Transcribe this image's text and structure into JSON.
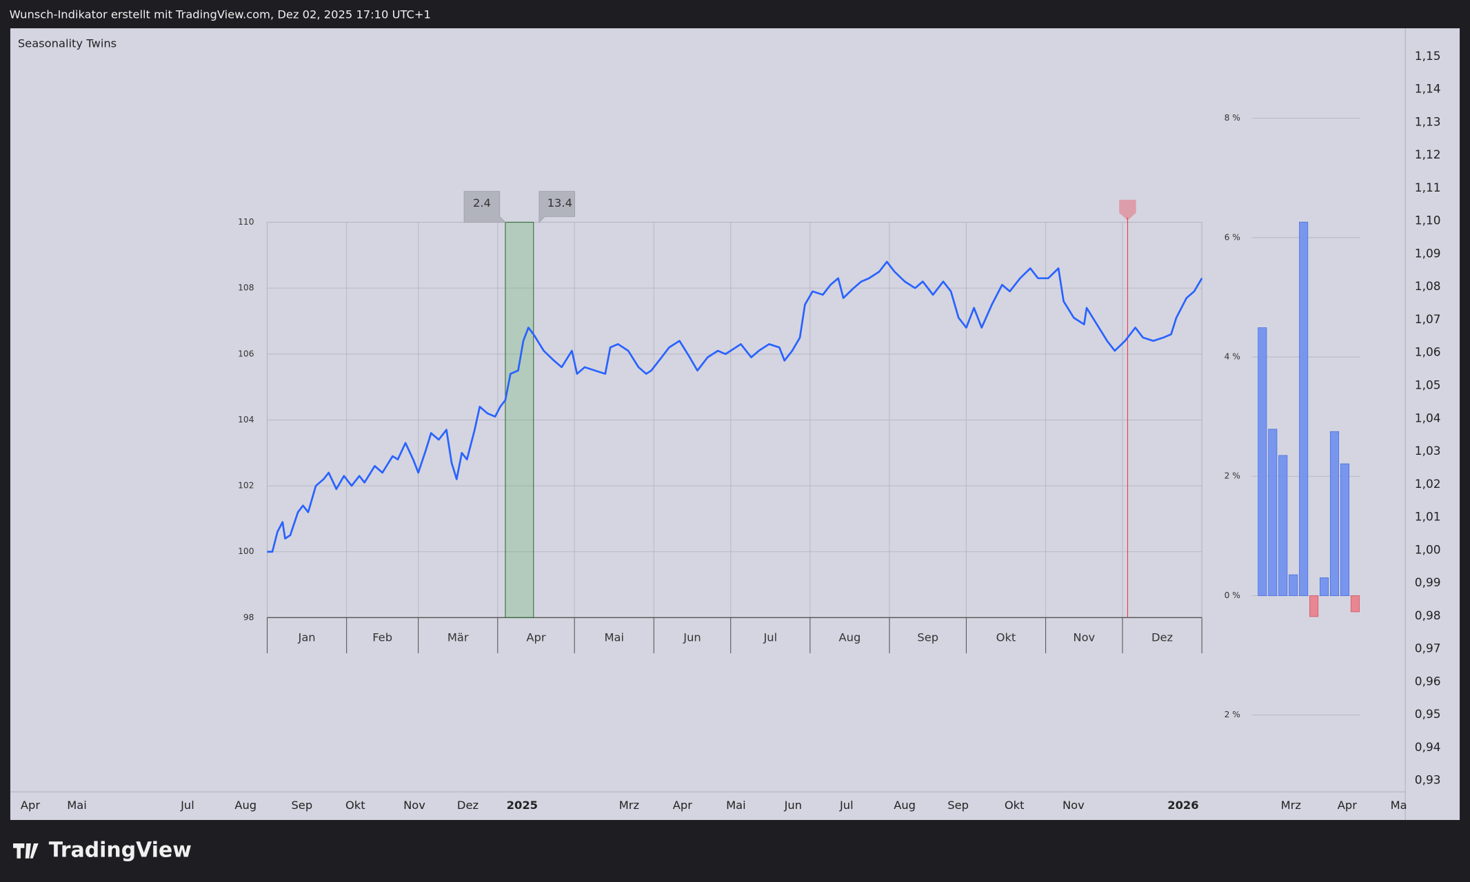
{
  "header": "Wunsch-Indikator erstellt mit TradingView.com, Dez 02, 2025 17:10 UTC+1",
  "indicator": "Seasonality Twins",
  "logo": "TradingView",
  "price_scale": [
    "1,15",
    "1,14",
    "1,13",
    "1,12",
    "1,11",
    "1,10",
    "1,09",
    "1,08",
    "1,07",
    "1,06",
    "1,05",
    "1,04",
    "1,03",
    "1,02",
    "1,01",
    "1,00",
    "0,99",
    "0,98",
    "0,97",
    "0,96",
    "0,95",
    "0,94",
    "0,93"
  ],
  "time_scale": [
    "Apr",
    "Mai",
    "Jul",
    "Aug",
    "Sep",
    "Okt",
    "Nov",
    "Dez",
    "2025",
    "Mrz",
    "Apr",
    "Mai",
    "Jun",
    "Jul",
    "Aug",
    "Sep",
    "Okt",
    "Nov",
    "2026",
    "Mrz",
    "Apr",
    "Ma"
  ],
  "chart_data": [
    {
      "type": "line",
      "color": "#2962ff",
      "grid": true,
      "x": [
        1,
        3,
        5,
        7,
        8,
        10,
        13,
        15,
        17,
        20,
        23,
        25,
        28,
        31,
        34,
        37,
        39,
        43,
        46,
        50,
        52,
        55,
        58,
        60,
        63,
        65,
        68,
        71,
        73,
        75,
        77,
        79,
        82,
        84,
        87,
        90,
        92,
        94,
        96,
        99,
        101,
        103,
        105,
        109,
        113,
        116,
        120,
        122,
        125,
        129,
        133,
        135,
        138,
        142,
        146,
        149,
        151,
        155,
        158,
        162,
        166,
        169,
        173,
        177,
        180,
        186,
        190,
        193,
        197,
        201,
        203,
        206,
        209,
        211,
        214,
        218,
        221,
        224,
        226,
        230,
        233,
        236,
        240,
        243,
        246,
        250,
        254,
        257,
        261,
        265,
        268,
        271,
        274,
        277,
        280,
        284,
        288,
        291,
        295,
        299,
        302,
        306,
        310,
        312,
        316,
        320,
        321,
        325,
        329,
        332,
        336,
        340,
        343,
        347,
        351,
        354,
        356,
        360,
        363,
        366
      ],
      "values": [
        100.0,
        100.0,
        100.6,
        100.9,
        100.4,
        100.5,
        101.2,
        101.4,
        101.2,
        102.0,
        102.2,
        102.4,
        101.9,
        102.3,
        102.0,
        102.3,
        102.1,
        102.6,
        102.4,
        102.9,
        102.8,
        103.3,
        102.8,
        102.4,
        103.1,
        103.6,
        103.4,
        103.7,
        102.7,
        102.2,
        103.0,
        102.8,
        103.7,
        104.4,
        104.2,
        104.1,
        104.4,
        104.6,
        105.4,
        105.5,
        106.4,
        106.8,
        106.6,
        106.1,
        105.8,
        105.6,
        106.1,
        105.4,
        105.6,
        105.5,
        105.4,
        106.2,
        106.3,
        106.1,
        105.6,
        105.4,
        105.5,
        105.9,
        106.2,
        106.4,
        105.9,
        105.5,
        105.9,
        106.1,
        106.0,
        106.3,
        105.9,
        106.1,
        106.3,
        106.2,
        105.8,
        106.1,
        106.5,
        107.5,
        107.9,
        107.8,
        108.1,
        108.3,
        107.7,
        108.0,
        108.2,
        108.3,
        108.5,
        108.8,
        108.5,
        108.2,
        108.0,
        108.2,
        107.8,
        108.2,
        107.9,
        107.1,
        106.8,
        107.4,
        106.8,
        107.5,
        108.1,
        107.9,
        108.3,
        108.6,
        108.3,
        108.3,
        108.6,
        107.6,
        107.1,
        106.9,
        107.4,
        106.9,
        106.4,
        106.1,
        106.4,
        106.8,
        106.5,
        106.4,
        106.5,
        106.6,
        107.1,
        107.7,
        107.9,
        108.3
      ],
      "xlim": [
        1,
        366
      ],
      "xticks": [
        {
          "value": 1,
          "label": "Jan"
        },
        {
          "value": 32,
          "label": "Feb"
        },
        {
          "value": 60,
          "label": "Mär"
        },
        {
          "value": 91,
          "label": "Apr"
        },
        {
          "value": 121,
          "label": "Mai"
        },
        {
          "value": 152,
          "label": "Jun"
        },
        {
          "value": 182,
          "label": "Jul"
        },
        {
          "value": 213,
          "label": "Aug"
        },
        {
          "value": 244,
          "label": "Sep"
        },
        {
          "value": 274,
          "label": "Okt"
        },
        {
          "value": 305,
          "label": "Nov"
        },
        {
          "value": 335,
          "label": "Dez"
        }
      ],
      "ylim": [
        98,
        110
      ],
      "yticks": [
        98,
        100,
        102,
        104,
        106,
        108,
        110
      ],
      "highlight": {
        "start": 94,
        "end": 105,
        "start_label": "2.4",
        "end_label": "13.4",
        "color": "#4caf50"
      },
      "marker_x": 337,
      "marker_color": "#f23645"
    },
    {
      "type": "bar",
      "color": "#6f8ff0",
      "negative_color": "#ea7d88",
      "categories": [
        null,
        null,
        null,
        null,
        null,
        null,
        null,
        null,
        null,
        null
      ],
      "values": [
        4.49,
        2.79,
        2.35,
        0.35,
        6.26,
        -0.35,
        0.3,
        2.75,
        2.21,
        -0.27
      ],
      "ylim": [
        -2,
        8
      ],
      "yticks": [
        {
          "value": 8,
          "label": "8 %"
        },
        {
          "value": 6,
          "label": "6 %"
        },
        {
          "value": 4,
          "label": "4 %"
        },
        {
          "value": 2,
          "label": "2 %"
        },
        {
          "value": 0,
          "label": "0 %"
        },
        {
          "value": -2,
          "label": "2 %"
        }
      ],
      "grid": true
    }
  ]
}
